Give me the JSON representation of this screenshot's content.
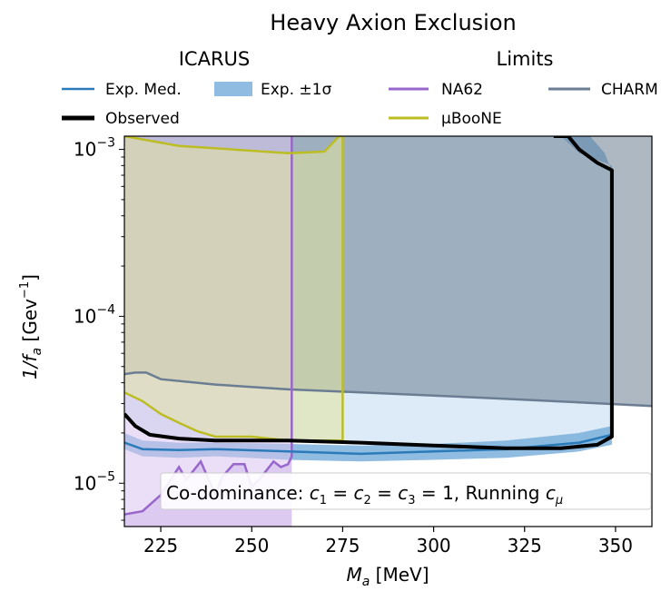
{
  "chart_data": {
    "type": "area",
    "title": "Heavy Axion Exclusion",
    "xlabel": "M",
    "xlabel_sub": "a",
    "xlabel_unit": " [MeV]",
    "ylabel": "1/f",
    "ylabel_sub": "a",
    "ylabel_unit_pre": " [Gev",
    "ylabel_unit_exp": "−1",
    "ylabel_unit_post": "]",
    "xlim": [
      215,
      360
    ],
    "ylim": [
      5.5e-06,
      0.0012
    ],
    "yscale": "log",
    "grid": false,
    "x_ticks": [
      225,
      250,
      275,
      300,
      325,
      350
    ],
    "y_ticks": [
      {
        "value": 1e-05,
        "base": "10",
        "exp": "−5"
      },
      {
        "value": 0.0001,
        "base": "10",
        "exp": "−4"
      },
      {
        "value": 0.001,
        "base": "10",
        "exp": "−3"
      }
    ],
    "legend": {
      "placement": "top",
      "group_left_title": "ICARUS",
      "group_right_title": "Limits",
      "entries": [
        "Exp. Med.",
        "Exp. ±1σ",
        "Observed",
        "NA62",
        "μBooNE",
        "CHARM"
      ]
    },
    "annotation": {
      "prefix": "Co-dominance: ",
      "c": "c",
      "s1": "1",
      "s2": "2",
      "s3": "3",
      "eq": " = ",
      "one": "1",
      "suffix": ", Running ",
      "mu": "μ"
    },
    "colors": {
      "icarus_fill": "#dcebf7",
      "band": "#7bb0da",
      "median": "#2b7bba",
      "observed": "#000000",
      "na62_line": "#9966cc",
      "na62_fill": "#d8c4ee",
      "uboone_line": "#bcbd22",
      "uboone_fill": "#e3e4a0",
      "charm_line": "#6b7d92",
      "charm_fill": "#6b7d92"
    },
    "series": [
      {
        "name": "CHARM",
        "x": [
          215,
          218,
          221,
          225,
          240,
          260,
          280,
          300,
          320,
          340,
          360
        ],
        "y": [
          4.5e-05,
          4.6e-05,
          4.6e-05,
          4.2e-05,
          3.9e-05,
          3.65e-05,
          3.5e-05,
          3.35e-05,
          3.2e-05,
          3.05e-05,
          2.9e-05
        ]
      },
      {
        "name": "NA62",
        "x": [
          215,
          220,
          225,
          230,
          232,
          236,
          240,
          242,
          245,
          248,
          250,
          252,
          256,
          258,
          260,
          261
        ],
        "y": [
          6.5e-06,
          6.8e-06,
          8.5e-06,
          1.25e-05,
          1.05e-05,
          1.35e-05,
          8.5e-06,
          1.1e-05,
          1.3e-05,
          1.3e-05,
          9.5e-06,
          1.05e-05,
          1.35e-05,
          1.25e-05,
          1.3e-05,
          1.45e-05
        ],
        "x_edge": 261
      },
      {
        "name": "μBooNE",
        "x": [
          215,
          220,
          225,
          230,
          235,
          240,
          245,
          250,
          255,
          260,
          265,
          270,
          275
        ],
        "y": [
          3.5e-05,
          3.1e-05,
          2.6e-05,
          2.3e-05,
          2.05e-05,
          1.9e-05,
          1.9e-05,
          1.9e-05,
          1.85e-05,
          1.8e-05,
          1.8e-05,
          1.8e-05,
          1.8e-05
        ],
        "x_top": [
          215,
          230,
          260,
          270,
          274,
          275
        ],
        "y_top": [
          0.0012,
          0.00105,
          0.00095,
          0.00097,
          0.0012,
          0.0012
        ]
      },
      {
        "name": "Exp. Med.",
        "x": [
          215,
          220,
          230,
          240,
          260,
          280,
          300,
          320,
          340,
          349
        ],
        "y": [
          1.75e-05,
          1.6e-05,
          1.58e-05,
          1.6e-05,
          1.55e-05,
          1.5e-05,
          1.55e-05,
          1.6e-05,
          1.75e-05,
          1.95e-05
        ]
      },
      {
        "name": "Exp. ±1σ",
        "x_lo": [
          215,
          220,
          230,
          240,
          260,
          280,
          300,
          320,
          340,
          349
        ],
        "y_lo": [
          1.6e-05,
          1.45e-05,
          1.42e-05,
          1.45e-05,
          1.38e-05,
          1.35e-05,
          1.38e-05,
          1.42e-05,
          1.55e-05,
          1.7e-05
        ],
        "x_hi": [
          215,
          220,
          230,
          240,
          260,
          280,
          300,
          320,
          340,
          349
        ],
        "y_hi": [
          2e-05,
          1.8e-05,
          1.75e-05,
          1.75e-05,
          1.72e-05,
          1.68e-05,
          1.72e-05,
          1.8e-05,
          2e-05,
          2.2e-05
        ],
        "x_top": [
          335,
          340,
          349
        ],
        "y_top": [
          0.0012,
          0.00095,
          0.0008
        ]
      },
      {
        "name": "Observed",
        "x": [
          215,
          218,
          222,
          230,
          240,
          260,
          280,
          300,
          320,
          335,
          345,
          349,
          349,
          345,
          340,
          337,
          333
        ],
        "y": [
          2.6e-05,
          2.2e-05,
          1.95e-05,
          1.85e-05,
          1.8e-05,
          1.8e-05,
          1.75e-05,
          1.68e-05,
          1.62e-05,
          1.62e-05,
          1.7e-05,
          1.9e-05,
          0.00075,
          0.00083,
          0.001,
          0.0012,
          0.0012
        ]
      }
    ]
  }
}
